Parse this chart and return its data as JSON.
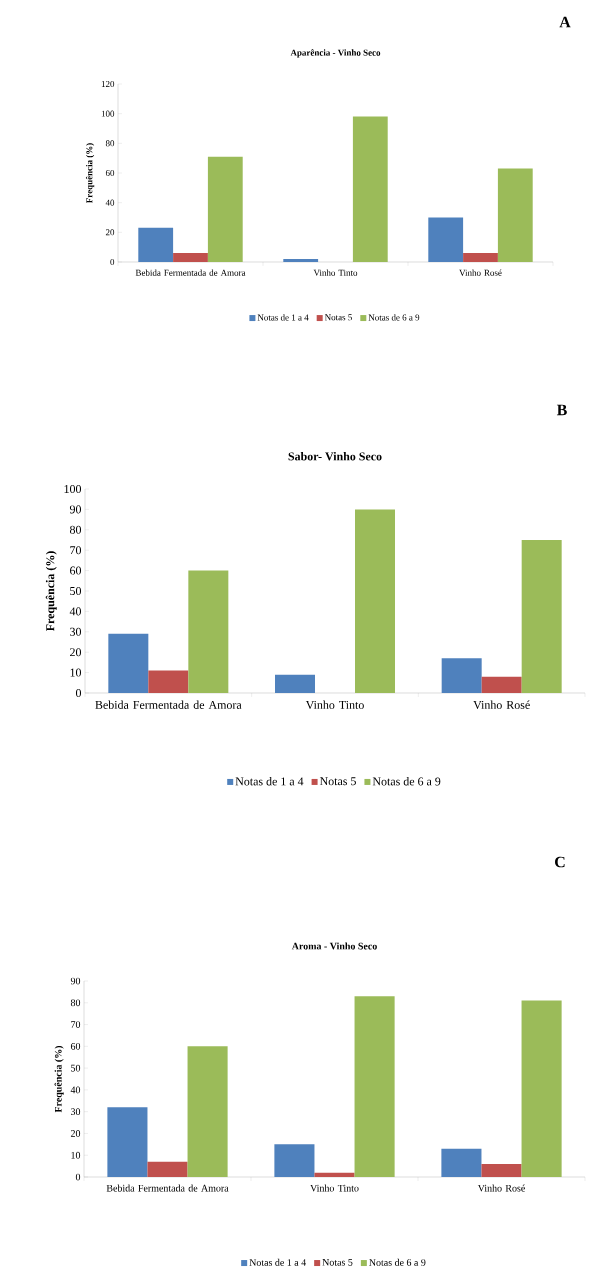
{
  "chart_data": [
    {
      "type": "bar",
      "title": "Aparência - Vinho Seco",
      "ylabel": "Frequência (%)",
      "categories": [
        "Bebida Fermentada de Amora",
        "Vinho Tinto",
        "Vinho Rosé"
      ],
      "series": [
        {
          "name": "Notas de 1 a 4",
          "color": "#4f81bd",
          "values": [
            23,
            2,
            30
          ]
        },
        {
          "name": "Notas 5",
          "color": "#c0504d",
          "values": [
            6,
            0,
            6
          ]
        },
        {
          "name": "Notas de 6 a 9",
          "color": "#9bbb59",
          "values": [
            71,
            98,
            63
          ]
        }
      ],
      "ylim": [
        0,
        120
      ],
      "yticks": [
        0,
        20,
        40,
        60,
        80,
        100,
        120
      ],
      "legend": "bottom",
      "annotations": [
        "A"
      ]
    },
    {
      "type": "bar",
      "title": "Sabor- Vinho Seco",
      "ylabel": "Frequência (%)",
      "categories": [
        "Bebida Fermentada de Amora",
        "Vinho Tinto",
        "Vinho Rosé"
      ],
      "series": [
        {
          "name": "Notas de 1 a 4",
          "color": "#4f81bd",
          "values": [
            29,
            9,
            17
          ]
        },
        {
          "name": "Notas 5",
          "color": "#c0504d",
          "values": [
            11,
            0,
            8
          ]
        },
        {
          "name": "Notas de 6 a 9",
          "color": "#9bbb59",
          "values": [
            60,
            90,
            75
          ]
        }
      ],
      "ylim": [
        0,
        100
      ],
      "yticks": [
        0,
        10,
        20,
        30,
        40,
        50,
        60,
        70,
        80,
        90,
        100
      ],
      "legend": "bottom",
      "annotations": [
        "B"
      ]
    },
    {
      "type": "bar",
      "title": "Aroma - Vinho Seco",
      "ylabel": "Frequência (%)",
      "categories": [
        "Bebida Fermentada de Amora",
        "Vinho Tinto",
        "Vinho Rosé"
      ],
      "series": [
        {
          "name": "Notas de 1 a 4",
          "color": "#4f81bd",
          "values": [
            32,
            15,
            13
          ]
        },
        {
          "name": "Notas 5",
          "color": "#c0504d",
          "values": [
            7,
            2,
            6
          ]
        },
        {
          "name": "Notas de 6 a 9",
          "color": "#9bbb59",
          "values": [
            60,
            83,
            81
          ]
        }
      ],
      "ylim": [
        0,
        90
      ],
      "yticks": [
        0,
        10,
        20,
        30,
        40,
        50,
        60,
        70,
        80,
        90
      ],
      "legend": "bottom",
      "annotations": [
        "C"
      ]
    }
  ]
}
